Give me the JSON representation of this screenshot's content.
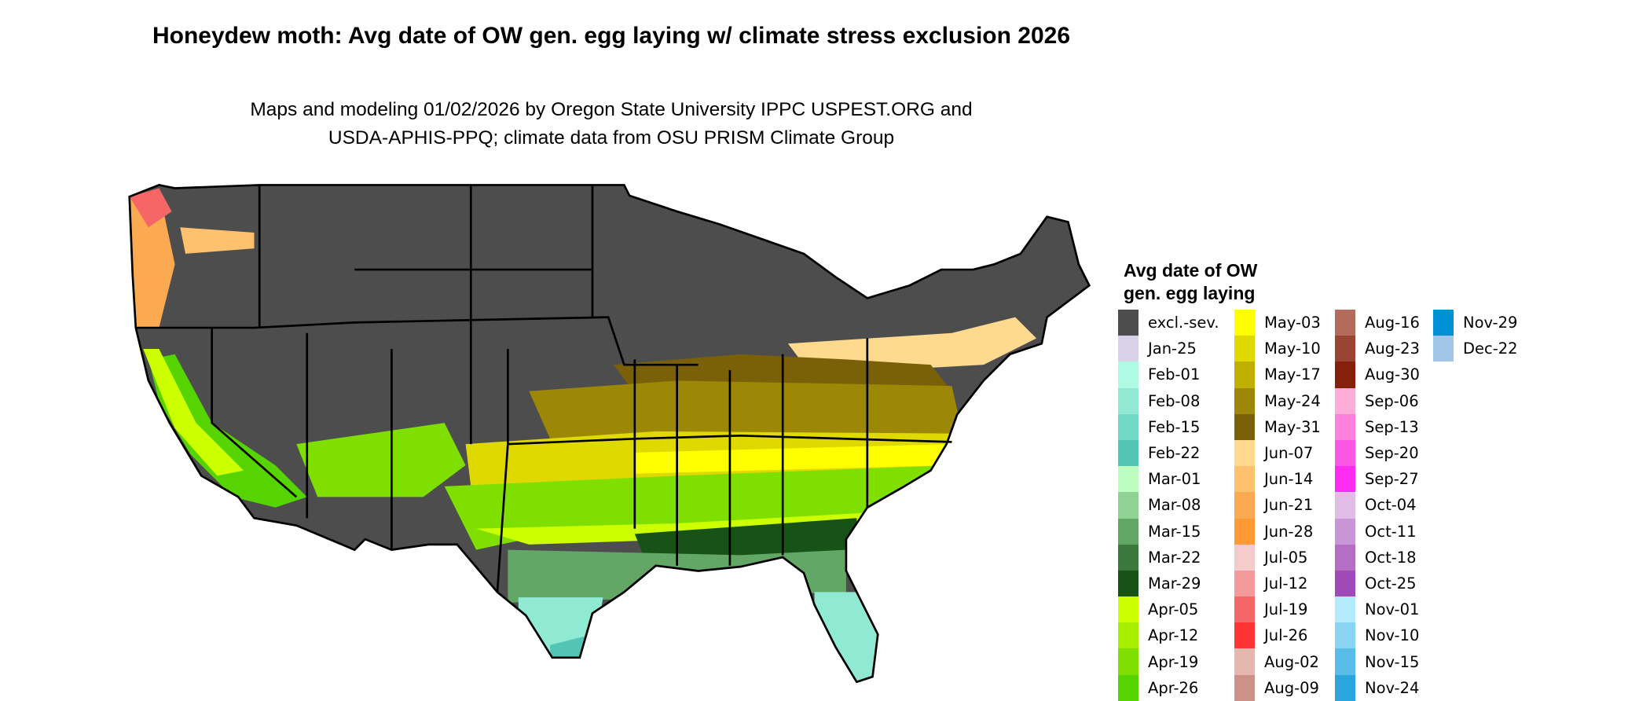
{
  "title": "Honeydew moth: Avg date of OW gen. egg laying w/ climate stress exclusion 2026",
  "subtitle_line1": "Maps and modeling 01/02/2026 by Oregon State University IPPC USPEST.ORG and",
  "subtitle_line2": "USDA-APHIS-PPQ; climate data from OSU PRISM Climate Group",
  "legend": {
    "title_line1": "Avg date of OW",
    "title_line2": "gen. egg laying",
    "columns": [
      [
        {
          "label": "excl.-sev.",
          "color": "#4d4d4d"
        },
        {
          "label": "Jan-25",
          "color": "#d9d2e9"
        },
        {
          "label": "Feb-01",
          "color": "#aefae3"
        },
        {
          "label": "Feb-08",
          "color": "#92e8d3"
        },
        {
          "label": "Feb-15",
          "color": "#72d8c6"
        },
        {
          "label": "Feb-22",
          "color": "#52c5b5"
        },
        {
          "label": "Mar-01",
          "color": "#bdfdc0"
        },
        {
          "label": "Mar-08",
          "color": "#90d294"
        },
        {
          "label": "Mar-15",
          "color": "#62a766"
        },
        {
          "label": "Mar-22",
          "color": "#3a783b"
        },
        {
          "label": "Mar-29",
          "color": "#175217"
        },
        {
          "label": "Apr-05",
          "color": "#ccff00"
        },
        {
          "label": "Apr-12",
          "color": "#a8ee00"
        },
        {
          "label": "Apr-19",
          "color": "#7fe000"
        },
        {
          "label": "Apr-26",
          "color": "#55d400"
        }
      ],
      [
        {
          "label": "May-03",
          "color": "#ffff00"
        },
        {
          "label": "May-10",
          "color": "#e0d900"
        },
        {
          "label": "May-17",
          "color": "#bfb000"
        },
        {
          "label": "May-24",
          "color": "#9c8806"
        },
        {
          "label": "May-31",
          "color": "#7a6008"
        },
        {
          "label": "Jun-07",
          "color": "#fed98e"
        },
        {
          "label": "Jun-14",
          "color": "#fec26e"
        },
        {
          "label": "Jun-21",
          "color": "#fcaa52"
        },
        {
          "label": "Jun-28",
          "color": "#fe9a34"
        },
        {
          "label": "Jul-05",
          "color": "#f5cccc"
        },
        {
          "label": "Jul-12",
          "color": "#f49a9a"
        },
        {
          "label": "Jul-19",
          "color": "#f56666"
        },
        {
          "label": "Jul-26",
          "color": "#fe3333"
        },
        {
          "label": "Aug-02",
          "color": "#e4b8ae"
        },
        {
          "label": "Aug-09",
          "color": "#cc9287"
        }
      ],
      [
        {
          "label": "Aug-16",
          "color": "#b36b5c"
        },
        {
          "label": "Aug-23",
          "color": "#9a4434"
        },
        {
          "label": "Aug-30",
          "color": "#84200c"
        },
        {
          "label": "Sep-06",
          "color": "#fdaed8"
        },
        {
          "label": "Sep-13",
          "color": "#fd80dc"
        },
        {
          "label": "Sep-20",
          "color": "#fd56e4"
        },
        {
          "label": "Sep-27",
          "color": "#fe2bf0"
        },
        {
          "label": "Oct-04",
          "color": "#e0bce6"
        },
        {
          "label": "Oct-11",
          "color": "#c896d6"
        },
        {
          "label": "Oct-18",
          "color": "#b46fc4"
        },
        {
          "label": "Oct-25",
          "color": "#9f4ab6"
        },
        {
          "label": "Nov-01",
          "color": "#b4ecfd"
        },
        {
          "label": "Nov-10",
          "color": "#8ad6f2"
        },
        {
          "label": "Nov-15",
          "color": "#58bde8"
        },
        {
          "label": "Nov-24",
          "color": "#2aa6dc"
        }
      ],
      [
        {
          "label": "Nov-29",
          "color": "#0090d4"
        },
        {
          "label": "Dec-22",
          "color": "#a2c6e8"
        }
      ]
    ]
  },
  "colors": {
    "excluded": "#4d4d4d",
    "border": "#000000",
    "background": "#ffffff"
  }
}
